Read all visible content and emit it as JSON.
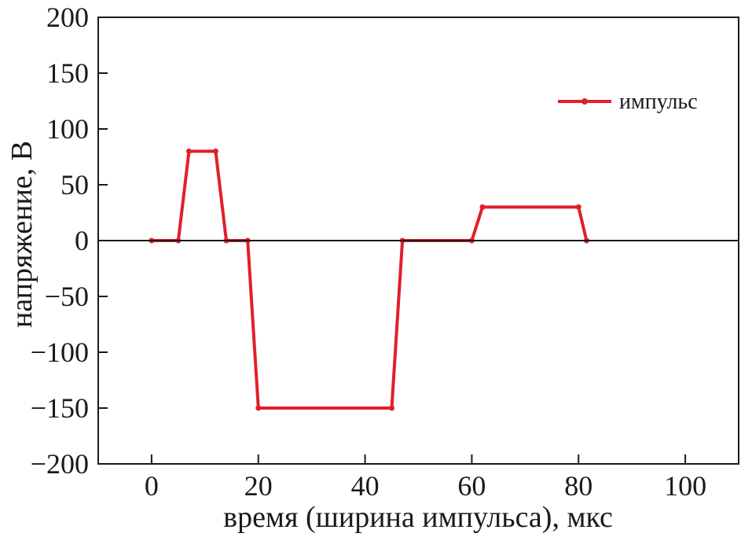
{
  "chart_data": {
    "type": "line",
    "xlabel": "время (ширина импульса), мкс",
    "ylabel": "напряжение, В",
    "xlim": [
      -10,
      110
    ],
    "ylim": [
      -200,
      200
    ],
    "x_ticks": [
      0,
      20,
      40,
      60,
      80,
      100
    ],
    "x_tick_labels": [
      "0",
      "20",
      "40",
      "60",
      "80",
      "100"
    ],
    "y_ticks": [
      200,
      150,
      100,
      50,
      0,
      -50,
      -100,
      -150,
      -200
    ],
    "y_tick_labels": [
      "200",
      "150",
      "100",
      "50",
      "0",
      "−50",
      "−100",
      "−150",
      "−200"
    ],
    "zero_line": true,
    "grid": false,
    "legend_position": "top-right",
    "series": [
      {
        "name": "импульс",
        "color": "#e0202a",
        "marker": "circle",
        "points": [
          [
            0,
            0
          ],
          [
            5,
            0
          ],
          [
            7,
            80
          ],
          [
            12,
            80
          ],
          [
            14,
            0
          ],
          [
            18,
            0
          ],
          [
            20,
            -150
          ],
          [
            45,
            -150
          ],
          [
            47,
            0
          ],
          [
            60,
            0
          ],
          [
            62,
            30
          ],
          [
            80,
            30
          ],
          [
            81.5,
            0
          ]
        ]
      }
    ]
  }
}
